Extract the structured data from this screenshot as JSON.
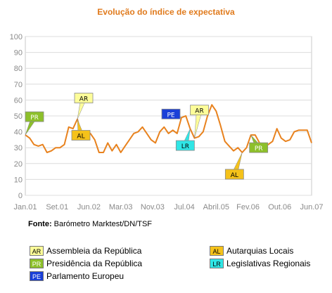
{
  "chart_data": {
    "type": "line",
    "title": "Evolução do índice de expectativa",
    "source_label": "Fonte:",
    "source_text": "Barómetro Marktest/DN/TSF",
    "ylim": [
      0,
      100
    ],
    "yticks": [
      0,
      10,
      20,
      30,
      40,
      50,
      60,
      70,
      80,
      90,
      100
    ],
    "grid": true,
    "line_color": "#e8821e",
    "x_tick_labels": [
      "Jan.01",
      "Set.01",
      "Jun.02",
      "Mar.03",
      "Nov.03",
      "Jul.04",
      "Abril.05",
      "Fev.06",
      "Out.06",
      "Jun.07"
    ],
    "series": [
      {
        "values": [
          38,
          36,
          32,
          31,
          32,
          27,
          28,
          30,
          30,
          32,
          43,
          42,
          48,
          37,
          36,
          39,
          35,
          27,
          27,
          33,
          28,
          32,
          27,
          31,
          35,
          39,
          40,
          43,
          39,
          35,
          33,
          40,
          43,
          39,
          41,
          39,
          49,
          50,
          42,
          36,
          37,
          40,
          50,
          57,
          53,
          44,
          34,
          31,
          28,
          30,
          27,
          30,
          38,
          38,
          33,
          30,
          32,
          34,
          42,
          36,
          34,
          35,
          40,
          41,
          41,
          41,
          33
        ]
      }
    ],
    "events": [
      {
        "code": "PR",
        "color": "#8dc02a",
        "text_color": "#ffffff",
        "x_index": 0,
        "y": 38
      },
      {
        "code": "AR",
        "color": "#fdfd99",
        "text_color": "#000000",
        "x_index": 12,
        "y": 48
      },
      {
        "code": "AL",
        "color": "#f5c21a",
        "text_color": "#000000",
        "x_index": 12,
        "y": 48
      },
      {
        "code": "PE",
        "color": "#1a3fd8",
        "text_color": "#ffffff",
        "x_index": 36,
        "y": 49
      },
      {
        "code": "LR",
        "color": "#2fe6e6",
        "text_color": "#000000",
        "x_index": 38,
        "y": 42
      },
      {
        "code": "AR",
        "color": "#fdfd99",
        "text_color": "#000000",
        "x_index": 39,
        "y": 36
      },
      {
        "code": "AL",
        "color": "#f5c21a",
        "text_color": "#000000",
        "x_index": 50,
        "y": 27
      },
      {
        "code": "PR",
        "color": "#8dc02a",
        "text_color": "#ffffff",
        "x_index": 52,
        "y": 38
      }
    ]
  },
  "legend": [
    {
      "code": "AR",
      "label": "Assembleia da República",
      "color": "#fdfd99",
      "text_color": "#000000"
    },
    {
      "code": "AL",
      "label": "Autarquias Locais",
      "color": "#f5c21a",
      "text_color": "#000000"
    },
    {
      "code": "PR",
      "label": "Presidência da República",
      "color": "#8dc02a",
      "text_color": "#ffffff"
    },
    {
      "code": "LR",
      "label": "Legislativas Regionais",
      "color": "#2fe6e6",
      "text_color": "#000000"
    },
    {
      "code": "PE",
      "label": "Parlamento Europeu",
      "color": "#1a3fd8",
      "text_color": "#ffffff"
    }
  ]
}
